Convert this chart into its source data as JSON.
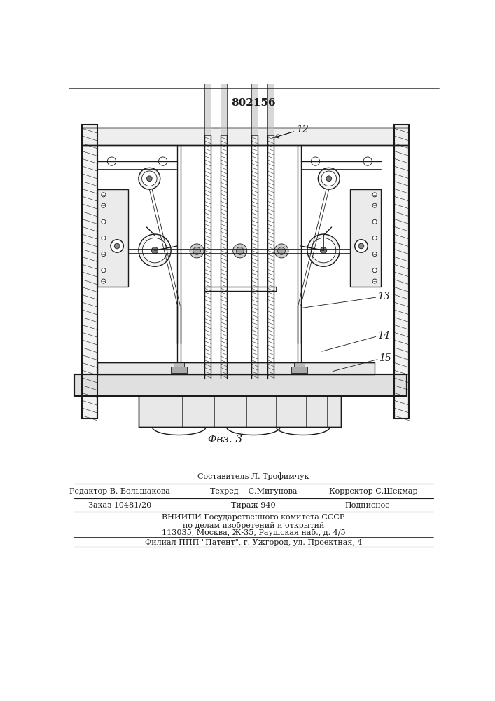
{
  "patent_number": "802156",
  "fig_label": "Φвз. 3",
  "label_12": "12",
  "label_13": "13",
  "label_14": "14",
  "label_15": "15",
  "footer_line1": "Составитель Л. Трофимчук",
  "footer_line2_left": "Редактор В. Большакова",
  "footer_line2_mid": "Техред    С.Мигунова",
  "footer_line2_right": "Корректор С.Шекмар",
  "footer_line3_left": "Заказ 10481/20",
  "footer_line3_mid": "Тираж 940",
  "footer_line3_right": "Подписное",
  "footer_line4": "ВНИИПИ Государственного комитета СССР",
  "footer_line5": "по делам изобретений и открытий",
  "footer_line6": "113035, Москва, Ж-35, Раушская наб., д. 4/5",
  "footer_line7": "Филиал ППП \"Патент\", г. Ужгород, ул. Проектная, 4",
  "bg_color": "#ffffff",
  "line_color": "#1a1a1a",
  "fig_width": 7.07,
  "fig_height": 10.0
}
